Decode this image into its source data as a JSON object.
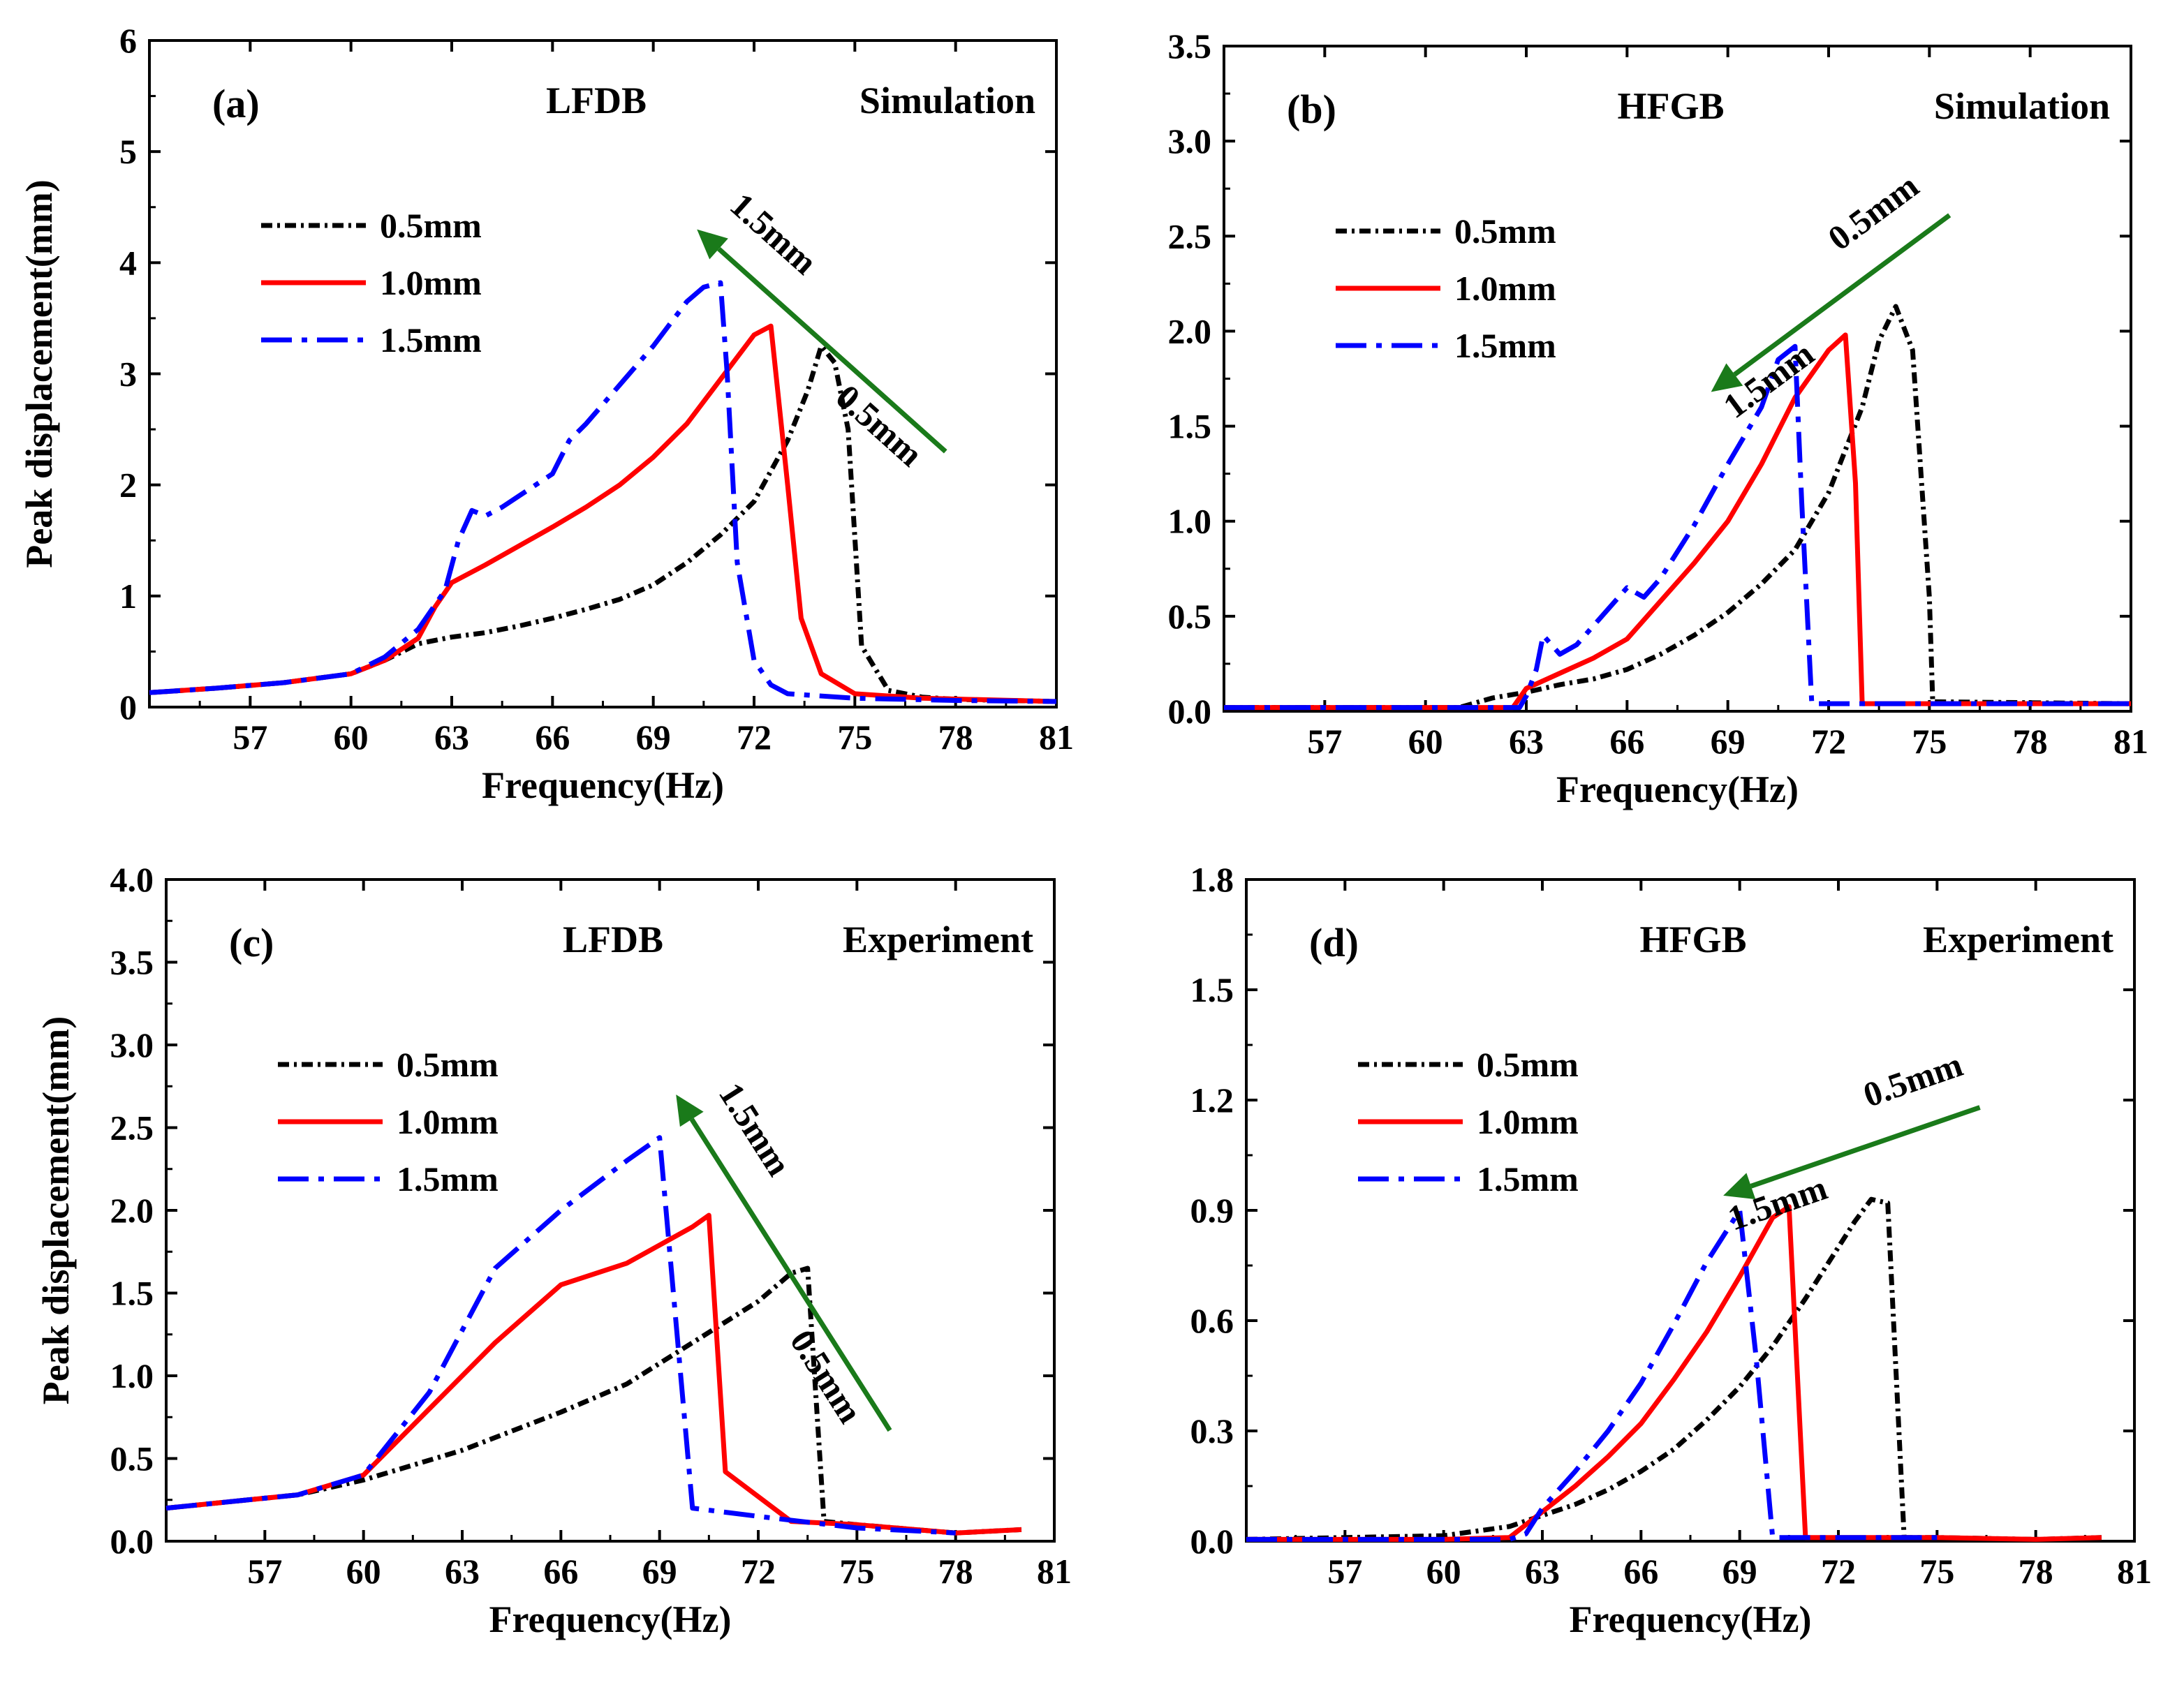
{
  "chart_data": [
    {
      "type": "line",
      "panel_label": "(a)",
      "beam": "LFDB",
      "mode": "Simulation",
      "xlabel": "Frequency(Hz)",
      "ylabel": "Peak displacement(mm)",
      "xlim": [
        54,
        81
      ],
      "ylim": [
        0,
        6
      ],
      "xticks": [
        57,
        60,
        63,
        66,
        69,
        72,
        75,
        78,
        81
      ],
      "yticks": [
        0,
        1,
        2,
        3,
        4,
        5,
        6
      ],
      "ytick_labels": [
        "0",
        "1",
        "2",
        "3",
        "4",
        "5",
        "6"
      ],
      "annotation": {
        "direction": "up-left",
        "from": [
          77.7,
          2.3
        ],
        "to": [
          70.3,
          4.3
        ],
        "start_label": "0.5mm",
        "end_label": "1.5mm"
      },
      "series": [
        {
          "name": "0.5mm",
          "color": "#000000",
          "dash": "dot",
          "x": [
            54,
            56,
            58,
            60,
            61,
            62,
            63,
            64,
            65,
            66,
            67,
            68,
            69,
            70,
            71,
            72,
            73,
            73.6,
            74,
            74.4,
            74.8,
            75.2,
            76,
            77,
            78,
            81
          ],
          "y": [
            0.13,
            0.17,
            0.22,
            0.3,
            0.42,
            0.57,
            0.63,
            0.67,
            0.73,
            0.8,
            0.88,
            0.97,
            1.1,
            1.3,
            1.55,
            1.85,
            2.4,
            2.85,
            3.25,
            3.1,
            2.5,
            0.55,
            0.15,
            0.09,
            0.07,
            0.05
          ]
        },
        {
          "name": "1.0mm",
          "color": "#ff0000",
          "dash": "solid",
          "x": [
            54,
            56,
            58,
            60,
            61,
            62,
            62.5,
            63,
            64,
            65,
            66,
            67,
            68,
            69,
            70,
            71,
            72,
            72.5,
            73,
            73.4,
            74,
            75,
            77,
            81
          ],
          "y": [
            0.13,
            0.17,
            0.22,
            0.3,
            0.42,
            0.62,
            0.9,
            1.12,
            1.28,
            1.45,
            1.62,
            1.8,
            2.0,
            2.25,
            2.55,
            2.95,
            3.35,
            3.43,
            2.0,
            0.8,
            0.3,
            0.12,
            0.08,
            0.05
          ]
        },
        {
          "name": "1.5mm",
          "color": "#0000ff",
          "dash": "dashdot",
          "x": [
            54,
            56,
            58,
            60,
            61,
            62,
            62.8,
            63.2,
            63.6,
            64,
            64.5,
            65,
            66,
            66.5,
            67,
            68,
            69,
            70,
            70.5,
            71,
            71.2,
            71.5,
            72,
            72.5,
            73,
            75,
            78,
            81
          ],
          "y": [
            0.13,
            0.17,
            0.22,
            0.3,
            0.45,
            0.7,
            1.05,
            1.5,
            1.77,
            1.72,
            1.8,
            1.9,
            2.1,
            2.4,
            2.55,
            2.9,
            3.25,
            3.65,
            3.78,
            3.82,
            3.0,
            1.3,
            0.42,
            0.2,
            0.12,
            0.08,
            0.06,
            0.05
          ]
        }
      ]
    },
    {
      "type": "line",
      "panel_label": "(b)",
      "beam": "HFGB",
      "mode": "Simulation",
      "xlabel": "Frequency(Hz)",
      "ylabel": "",
      "xlim": [
        54,
        81
      ],
      "ylim": [
        0,
        3.5
      ],
      "xticks": [
        57,
        60,
        63,
        66,
        69,
        72,
        75,
        78,
        81
      ],
      "yticks": [
        0,
        0.5,
        1.0,
        1.5,
        2.0,
        2.5,
        3.0,
        3.5
      ],
      "ytick_labels": [
        "0.0",
        "0.5",
        "1.0",
        "1.5",
        "2.0",
        "2.5",
        "3.0",
        "3.5"
      ],
      "annotation": {
        "direction": "down-left",
        "from": [
          75.6,
          2.61
        ],
        "to": [
          68.5,
          1.68
        ],
        "start_label": "0.5mm",
        "end_label": "1.5mm"
      },
      "series": [
        {
          "name": "0.5mm",
          "color": "#000000",
          "dash": "dot",
          "x": [
            54,
            61,
            62,
            63,
            64,
            65,
            66,
            67,
            68,
            69,
            70,
            71,
            72,
            73,
            73.5,
            74,
            74.5,
            75,
            75.1,
            81
          ],
          "y": [
            0.02,
            0.02,
            0.07,
            0.1,
            0.14,
            0.17,
            0.22,
            0.3,
            0.4,
            0.52,
            0.67,
            0.85,
            1.15,
            1.6,
            1.95,
            2.13,
            1.9,
            0.6,
            0.05,
            0.04
          ]
        },
        {
          "name": "1.0mm",
          "color": "#ff0000",
          "dash": "solid",
          "x": [
            54,
            62.6,
            63,
            64,
            65,
            66,
            67,
            68,
            69,
            70,
            71,
            72,
            72.5,
            72.8,
            73,
            81
          ],
          "y": [
            0.02,
            0.02,
            0.12,
            0.2,
            0.28,
            0.38,
            0.58,
            0.78,
            1.0,
            1.3,
            1.65,
            1.9,
            1.98,
            1.2,
            0.04,
            0.04
          ]
        },
        {
          "name": "1.5mm",
          "color": "#0000ff",
          "dash": "dashdot",
          "x": [
            54,
            62.8,
            63,
            63.3,
            63.5,
            64,
            64.5,
            65,
            66,
            66.5,
            67,
            68,
            69,
            70,
            70.5,
            71,
            71.2,
            71.5,
            81
          ],
          "y": [
            0.02,
            0.02,
            0.08,
            0.22,
            0.4,
            0.3,
            0.35,
            0.45,
            0.65,
            0.6,
            0.7,
            0.98,
            1.3,
            1.6,
            1.85,
            1.92,
            1.1,
            0.04,
            0.04
          ]
        }
      ]
    },
    {
      "type": "line",
      "panel_label": "(c)",
      "beam": "LFDB",
      "mode": "Experiment",
      "xlabel": "Frequency(Hz)",
      "ylabel": "Peak displacement(mm)",
      "xlim": [
        54,
        81
      ],
      "ylim": [
        0,
        4.0
      ],
      "xticks": [
        57,
        60,
        63,
        66,
        69,
        72,
        75,
        78,
        81
      ],
      "yticks": [
        0,
        0.5,
        1.0,
        1.5,
        2.0,
        2.5,
        3.0,
        3.5,
        4.0
      ],
      "ytick_labels": [
        "0.0",
        "0.5",
        "1.0",
        "1.5",
        "2.0",
        "2.5",
        "3.0",
        "3.5",
        "4.0"
      ],
      "annotation": {
        "direction": "up-left",
        "from": [
          76.0,
          0.67
        ],
        "to": [
          69.5,
          2.7
        ],
        "start_label": "0.5mm",
        "end_label": "1.5mm"
      },
      "series": [
        {
          "name": "0.5mm",
          "color": "#000000",
          "dash": "dot",
          "x": [
            54,
            58,
            60,
            63,
            66,
            68,
            70,
            72,
            73,
            73.5,
            74,
            75,
            78,
            80
          ],
          "y": [
            0.2,
            0.28,
            0.37,
            0.55,
            0.78,
            0.95,
            1.2,
            1.45,
            1.62,
            1.65,
            0.12,
            0.1,
            0.05,
            0.07
          ]
        },
        {
          "name": "1.0mm",
          "color": "#ff0000",
          "dash": "solid",
          "x": [
            54,
            58,
            60,
            62,
            64,
            66,
            68,
            70,
            70.5,
            71,
            73,
            75,
            78,
            80
          ],
          "y": [
            0.2,
            0.28,
            0.4,
            0.8,
            1.2,
            1.55,
            1.68,
            1.9,
            1.97,
            0.42,
            0.12,
            0.1,
            0.05,
            0.07
          ]
        },
        {
          "name": "1.5mm",
          "color": "#0000ff",
          "dash": "dashdot",
          "x": [
            54,
            58,
            60,
            62,
            64,
            66,
            68,
            69,
            70,
            72,
            75,
            78
          ],
          "y": [
            0.2,
            0.28,
            0.4,
            0.9,
            1.65,
            2.0,
            2.3,
            2.44,
            0.2,
            0.15,
            0.08,
            0.05
          ]
        }
      ]
    },
    {
      "type": "line",
      "panel_label": "(d)",
      "beam": "HFGB",
      "mode": "Experiment",
      "xlabel": "Frequency(Hz)",
      "ylabel": "",
      "xlim": [
        54,
        81
      ],
      "ylim": [
        0,
        1.8
      ],
      "xticks": [
        57,
        60,
        63,
        66,
        69,
        72,
        75,
        78,
        81
      ],
      "yticks": [
        0,
        0.3,
        0.6,
        0.9,
        1.2,
        1.5,
        1.8
      ],
      "ytick_labels": [
        "0.0",
        "0.3",
        "0.6",
        "0.9",
        "1.2",
        "1.5",
        "1.8"
      ],
      "annotation": {
        "direction": "left",
        "from": [
          76.3,
          1.18
        ],
        "to": [
          68.5,
          0.94
        ],
        "start_label": "0.5mm",
        "end_label": "1.5mm"
      },
      "series": [
        {
          "name": "0.5mm",
          "color": "#000000",
          "dash": "dot",
          "x": [
            54,
            60,
            62,
            63,
            64,
            65,
            66,
            67,
            68,
            69,
            70,
            71,
            72,
            72.5,
            73,
            73.5,
            74,
            75,
            78,
            80
          ],
          "y": [
            0.005,
            0.015,
            0.04,
            0.07,
            0.1,
            0.14,
            0.19,
            0.25,
            0.33,
            0.42,
            0.53,
            0.66,
            0.8,
            0.87,
            0.93,
            0.92,
            0.01,
            0.01,
            0.005,
            0.01
          ]
        },
        {
          "name": "1.0mm",
          "color": "#ff0000",
          "dash": "solid",
          "x": [
            54,
            60,
            62,
            63,
            64,
            65,
            66,
            67,
            68,
            69,
            70,
            70.5,
            71,
            72,
            75,
            78,
            80
          ],
          "y": [
            0.005,
            0.005,
            0.01,
            0.08,
            0.15,
            0.23,
            0.32,
            0.44,
            0.57,
            0.72,
            0.88,
            0.91,
            0.01,
            0.01,
            0.01,
            0.005,
            0.01
          ]
        },
        {
          "name": "1.5mm",
          "color": "#0000ff",
          "dash": "dashdot",
          "x": [
            54,
            62,
            62.5,
            63,
            64,
            65,
            66,
            67,
            68,
            69,
            69.5,
            70,
            71,
            75
          ],
          "y": [
            0.005,
            0.005,
            0.02,
            0.09,
            0.19,
            0.3,
            0.43,
            0.59,
            0.76,
            0.9,
            0.5,
            0.01,
            0.01,
            0.01
          ]
        }
      ]
    }
  ]
}
